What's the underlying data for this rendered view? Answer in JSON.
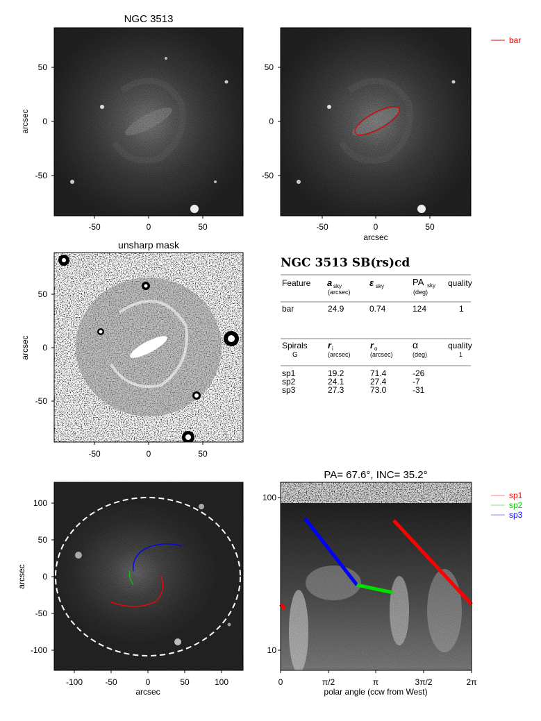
{
  "figure": {
    "panel_top_left": {
      "title": "NGC 3513",
      "ylabel": "arcsec",
      "xticks": [
        "-50",
        "0",
        "50"
      ],
      "yticks": [
        "50",
        "0",
        "-50"
      ]
    },
    "panel_top_right": {
      "xlabel": "arcsec",
      "xticks": [
        "-50",
        "0",
        "50"
      ],
      "yticks": [
        "50",
        "0",
        "-50"
      ],
      "legend": [
        {
          "label": "bar",
          "color": "#e00000"
        }
      ]
    },
    "panel_mid_left": {
      "title": "unsharp mask",
      "ylabel": "arcsec",
      "xticks": [
        "-50",
        "0",
        "50"
      ],
      "yticks": [
        "50",
        "0",
        "-50"
      ]
    },
    "table": {
      "title": "NGC 3513  SB(rs)cd",
      "bar_header": {
        "feature": "Feature",
        "a_sym": "a",
        "a_sub": "sky",
        "a_unit": "(arcsec)",
        "eps_sym": "ε",
        "eps_sub": "sky",
        "pa_sym": "PA",
        "pa_sub": "sky",
        "pa_unit": "(deg)",
        "quality": "quality"
      },
      "bar_row": {
        "feature": "bar",
        "a": "24.9",
        "eps": "0.74",
        "pa": "124",
        "quality": "1"
      },
      "spiral_header": {
        "label": "Spirals",
        "label2": "G",
        "ri_sym": "r",
        "ri_sub": "i",
        "ri_unit": "(arcsec)",
        "ro_sym": "r",
        "ro_sub": "o",
        "ro_unit": "(arcsec)",
        "alpha_sym": "α",
        "alpha_unit": "(deg)",
        "quality": "quality",
        "quality_val": "1"
      },
      "spiral_rows": [
        {
          "name": "sp1",
          "ri": "19.2",
          "ro": "71.4",
          "alpha": "-26"
        },
        {
          "name": "sp2",
          "ri": "24.1",
          "ro": "27.4",
          "alpha": "-7"
        },
        {
          "name": "sp3",
          "ri": "27.3",
          "ro": "73.0",
          "alpha": "-31"
        }
      ]
    },
    "panel_bottom_left": {
      "xlabel": "arcsec",
      "ylabel": "arcsec",
      "xticks": [
        "-100",
        "-50",
        "0",
        "50",
        "100"
      ],
      "yticks": [
        "100",
        "50",
        "0",
        "-50",
        "-100"
      ]
    },
    "panel_bottom_right": {
      "title": "PA=  67.6°, INC=  35.2°",
      "xlabel": "polar angle (ccw from West)",
      "xticks": [
        "0",
        "π/2",
        "π",
        "3π/2",
        "2π"
      ],
      "yticks": [
        "100",
        "10"
      ],
      "legend": [
        {
          "label": "sp1",
          "color": "#ff0000"
        },
        {
          "label": "sp2",
          "color": "#00cc00"
        },
        {
          "label": "sp3",
          "color": "#0000ff"
        }
      ]
    }
  }
}
